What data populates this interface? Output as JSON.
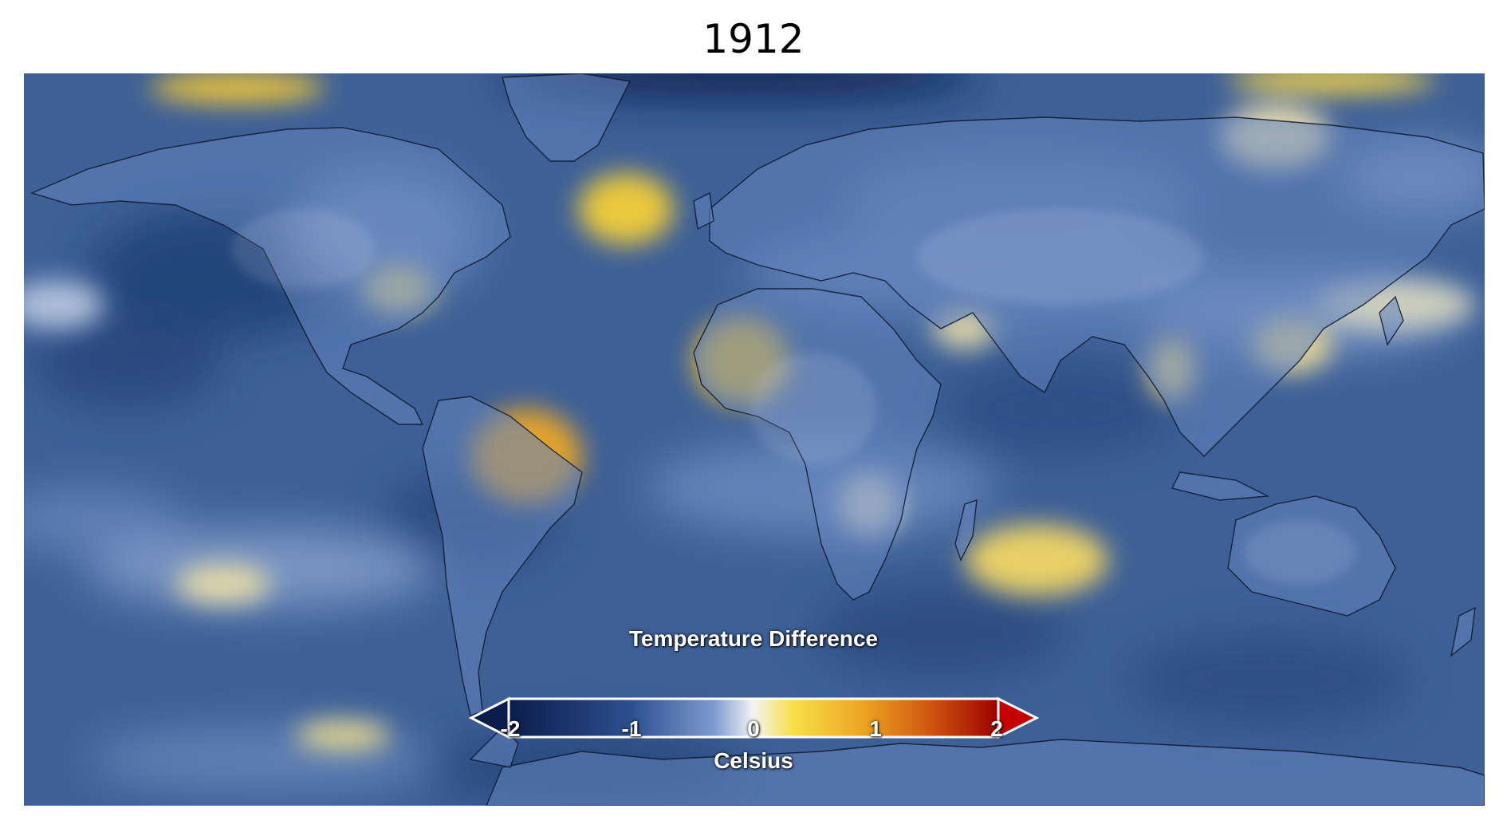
{
  "title": "1912",
  "legend": {
    "title": "Temperature Difference",
    "unit": "Celsius",
    "ticks": [
      "-2",
      "-1",
      "0",
      "1",
      "2"
    ],
    "range": [
      -2,
      2
    ],
    "colors": [
      "#0b1d4d",
      "#2d4f8f",
      "#6f8fc8",
      "#f2f2f2",
      "#f5d33a",
      "#e8901c",
      "#c23b0a",
      "#9e0000"
    ],
    "extend_low_color": "#0b1d4d",
    "extend_high_color": "#c40000"
  },
  "map": {
    "projection": "equirectangular",
    "background_color": "#3d5f95"
  }
}
